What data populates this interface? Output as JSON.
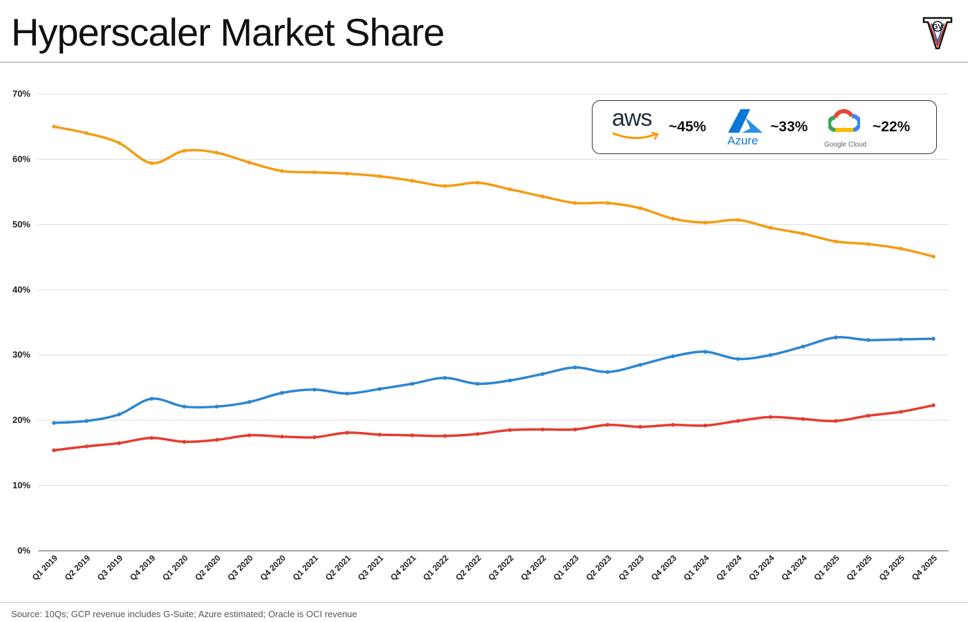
{
  "title": "Hyperscaler Market Share",
  "source_note": "Source: 10Qs; GCP revenue includes G-Suite; Azure estimated; Oracle is OCI revenue",
  "logo": {
    "icon": "v-shield-logo",
    "letters": "GV"
  },
  "legend": {
    "aws": {
      "brand": "aws",
      "pct": "~45%"
    },
    "azure": {
      "brand": "Azure",
      "pct": "~33%"
    },
    "google": {
      "brand": "Google Cloud",
      "pct": "~22%"
    }
  },
  "chart_data": {
    "type": "line",
    "title": "Hyperscaler Market Share",
    "xlabel": "",
    "ylabel": "",
    "ylim": [
      0,
      70
    ],
    "yticks": [
      0,
      10,
      20,
      30,
      40,
      50,
      60,
      70
    ],
    "ytick_labels": [
      "0%",
      "10%",
      "20%",
      "30%",
      "40%",
      "50%",
      "60%",
      "70%"
    ],
    "grid": true,
    "categories": [
      "Q1 2019",
      "Q2 2019",
      "Q3 2019",
      "Q4 2019",
      "Q1 2020",
      "Q2 2020",
      "Q3 2020",
      "Q4 2020",
      "Q1 2021",
      "Q2 2021",
      "Q3 2021",
      "Q4 2021",
      "Q1 2022",
      "Q2 2022",
      "Q3 2022",
      "Q4 2022",
      "Q1 2023",
      "Q2 2023",
      "Q3 2023",
      "Q4 2023",
      "Q1 2024",
      "Q2 2024",
      "Q3 2024",
      "Q4 2024",
      "Q1 2025",
      "Q2 2025",
      "Q3 2025",
      "Q4 2025"
    ],
    "series": [
      {
        "name": "AWS",
        "color": "#f39c12",
        "values": [
          65.0,
          64.0,
          62.5,
          59.4,
          61.3,
          61.0,
          59.5,
          58.2,
          58.0,
          57.8,
          57.4,
          56.7,
          55.9,
          56.4,
          55.4,
          54.3,
          53.3,
          53.3,
          52.5,
          50.9,
          50.3,
          50.7,
          49.5,
          48.6,
          47.4,
          47.0,
          46.3,
          45.1
        ]
      },
      {
        "name": "Azure",
        "color": "#2e86d1",
        "values": [
          19.6,
          19.9,
          20.9,
          23.3,
          22.1,
          22.1,
          22.8,
          24.2,
          24.7,
          24.1,
          24.8,
          25.6,
          26.5,
          25.6,
          26.1,
          27.1,
          28.1,
          27.4,
          28.5,
          29.8,
          30.5,
          29.4,
          30.0,
          31.3,
          32.7,
          32.3,
          32.4,
          32.5
        ]
      },
      {
        "name": "Google Cloud",
        "color": "#e53c2f",
        "values": [
          15.4,
          16.0,
          16.5,
          17.3,
          16.7,
          17.0,
          17.7,
          17.5,
          17.4,
          18.1,
          17.8,
          17.7,
          17.6,
          17.9,
          18.5,
          18.6,
          18.6,
          19.3,
          19.0,
          19.3,
          19.2,
          19.9,
          20.5,
          20.2,
          19.9,
          20.7,
          21.3,
          22.3
        ]
      }
    ]
  }
}
